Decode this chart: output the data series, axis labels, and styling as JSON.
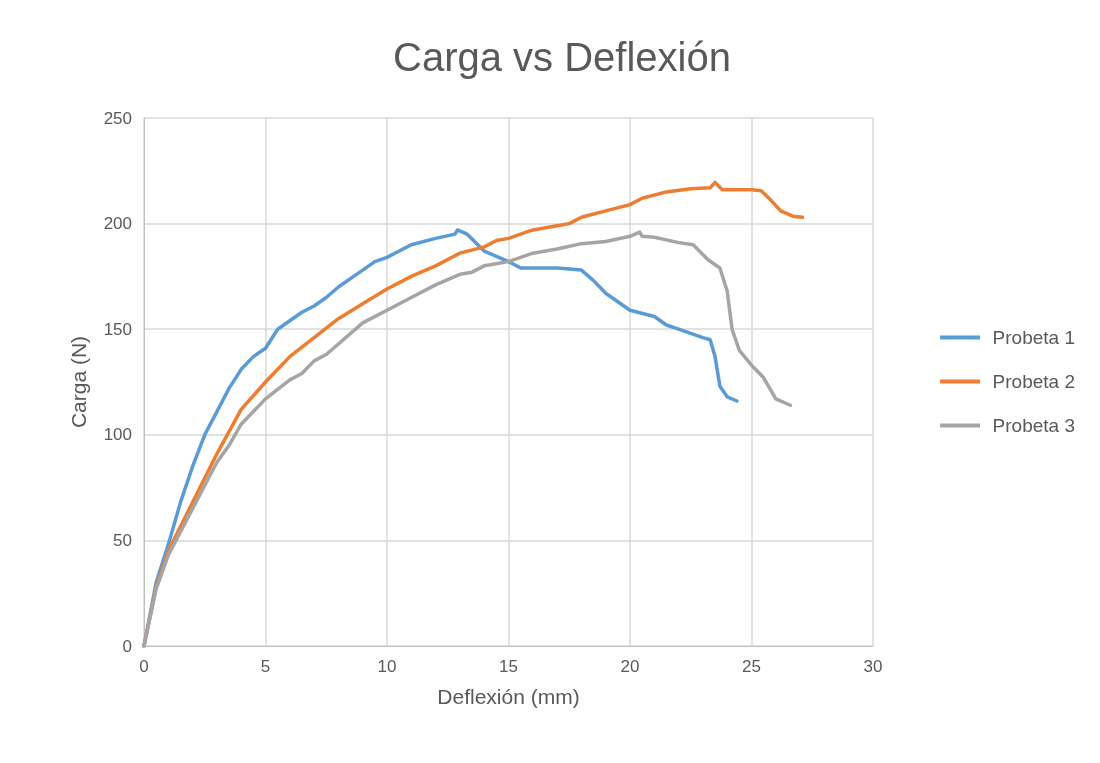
{
  "chart_data": {
    "type": "line",
    "title": "Carga vs Deflexión",
    "xlabel": "Deflexión (mm)",
    "ylabel": "Carga (N)",
    "xlim": [
      0,
      30
    ],
    "xticks": [
      0,
      5,
      10,
      15,
      20,
      25,
      30
    ],
    "ylim": [
      0,
      250
    ],
    "yticks": [
      0,
      50,
      100,
      150,
      200,
      250
    ],
    "grid": true,
    "legend": "right",
    "marker": "none",
    "line_style": "solid",
    "series": [
      {
        "name": "Probeta 1",
        "color": "#5b9bd5",
        "x": [
          0,
          0.5,
          1,
          1.5,
          2,
          2.5,
          3,
          3.5,
          4,
          4.5,
          5,
          5.5,
          6,
          6.5,
          7,
          7.5,
          8,
          9,
          9.5,
          10,
          11,
          12,
          12.8,
          12.9,
          13.3,
          14,
          15,
          15.5,
          17,
          18,
          18.5,
          19,
          20,
          21,
          21.5,
          22,
          22.5,
          23,
          23.3,
          23.5,
          23.7,
          24,
          24.4
        ],
        "values": [
          0,
          30,
          48,
          68,
          85,
          100,
          111,
          122,
          131,
          137,
          141,
          150,
          154,
          158,
          161,
          165,
          170,
          178,
          182,
          184,
          190,
          193,
          195,
          197,
          195,
          187,
          182,
          179,
          179,
          178,
          173,
          167,
          159,
          156,
          152,
          150,
          148,
          146,
          145,
          137,
          123,
          118,
          116
        ]
      },
      {
        "name": "Probeta 2",
        "color": "#ed7d31",
        "x": [
          0,
          0.5,
          1,
          2,
          3,
          4,
          5,
          6,
          7,
          8,
          9,
          10,
          11,
          12,
          13,
          14,
          14.5,
          15,
          16,
          17,
          17.5,
          18,
          19,
          20,
          20.5,
          21.5,
          22.5,
          23.3,
          23.5,
          23.8,
          25,
          25.4,
          25.8,
          26.2,
          26.7,
          27.1
        ],
        "values": [
          0,
          28,
          45,
          68,
          91,
          112,
          125,
          137,
          146,
          155,
          162,
          169,
          175,
          180,
          186,
          189,
          192,
          193,
          197,
          199,
          200,
          203,
          206,
          209,
          212,
          215,
          216.5,
          217,
          219.5,
          216,
          216,
          215.5,
          211,
          206,
          203.5,
          203
        ]
      },
      {
        "name": "Probeta 3",
        "color": "#a5a5a5",
        "x": [
          0,
          0.5,
          1,
          2,
          3,
          3.5,
          4,
          5,
          6,
          6.5,
          7,
          7.5,
          8,
          9,
          10,
          11,
          12,
          13,
          13.5,
          14,
          15,
          16,
          17,
          18,
          19,
          20,
          20.4,
          20.5,
          21,
          22,
          22.6,
          23.2,
          23.7,
          24,
          24.2,
          24.5,
          25,
          25.5,
          26,
          26.6
        ],
        "values": [
          0,
          27,
          43,
          65,
          87,
          95,
          105,
          117,
          126,
          129,
          135,
          138,
          143,
          153,
          159,
          165,
          171,
          176,
          177,
          180,
          182,
          186,
          188,
          190.5,
          191.5,
          194,
          196,
          194,
          193.5,
          191,
          190,
          183,
          179,
          168,
          150,
          140,
          133,
          127,
          117,
          114
        ]
      }
    ]
  }
}
